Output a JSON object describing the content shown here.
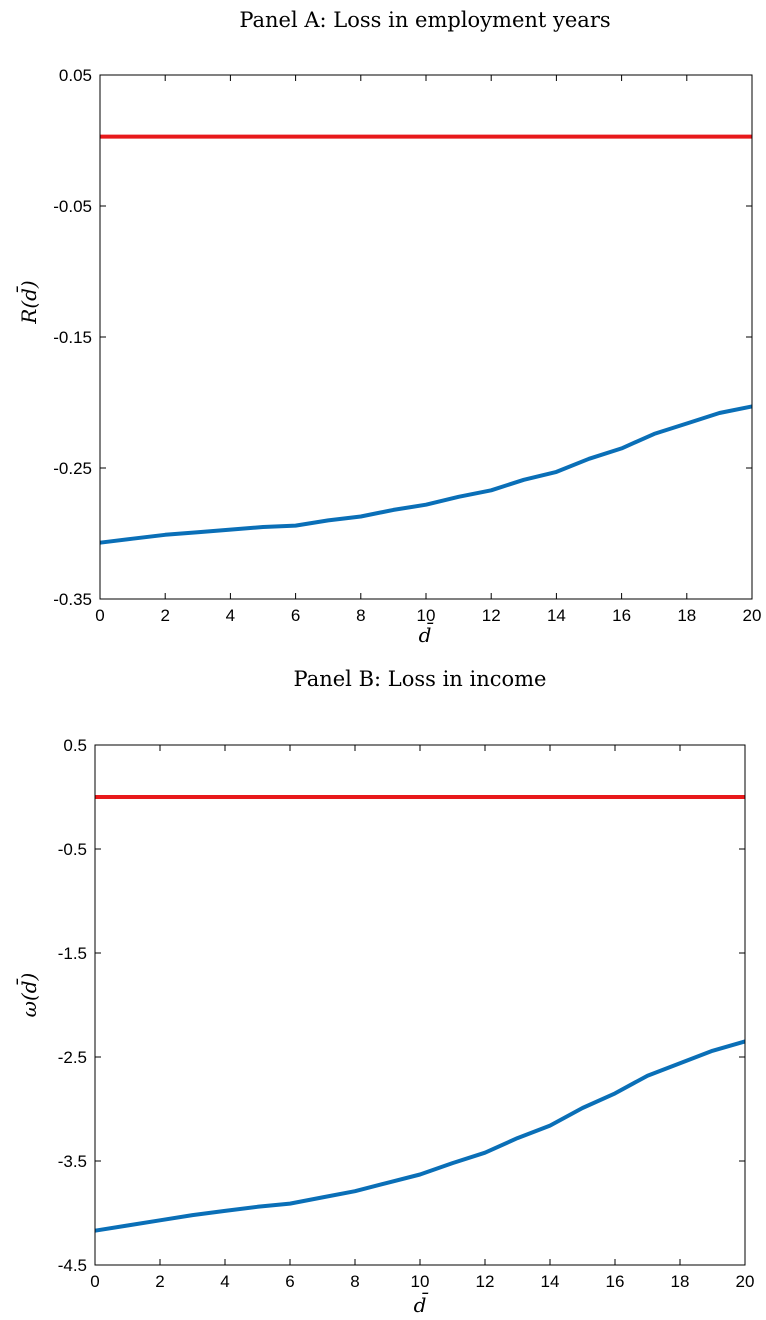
{
  "chart_data": [
    {
      "type": "line",
      "title": "Panel A: Loss in employment years",
      "xlabel": "d̄",
      "ylabel": "R(d̄)",
      "xlim": [
        0,
        20
      ],
      "ylim": [
        -0.35,
        0.05
      ],
      "xticks": [
        0,
        2,
        4,
        6,
        8,
        10,
        12,
        14,
        16,
        18,
        20
      ],
      "yticks": [
        0.05,
        -0.05,
        -0.15,
        -0.25,
        -0.35
      ],
      "ytick_labels": [
        "0.05",
        "-0.05",
        "-0.15",
        "-0.25",
        "-0.35"
      ],
      "grid": false,
      "series": [
        {
          "color": "#e8191b",
          "x": [
            0,
            20
          ],
          "y": [
            0.003,
            0.003
          ]
        },
        {
          "color": "#0a6fb7",
          "x": [
            0,
            1,
            2,
            3,
            4,
            5,
            6,
            7,
            8,
            9,
            10,
            11,
            12,
            13,
            14,
            15,
            16,
            17,
            18,
            19,
            20
          ],
          "y": [
            -0.307,
            -0.304,
            -0.301,
            -0.299,
            -0.297,
            -0.295,
            -0.294,
            -0.29,
            -0.287,
            -0.282,
            -0.278,
            -0.272,
            -0.267,
            -0.259,
            -0.253,
            -0.243,
            -0.235,
            -0.224,
            -0.216,
            -0.208,
            -0.203
          ]
        }
      ]
    },
    {
      "type": "line",
      "title": "Panel B: Loss in income",
      "xlabel": "d̄",
      "ylabel": "ω(d̄)",
      "xlim": [
        0,
        20
      ],
      "ylim": [
        -4.5,
        0.5
      ],
      "xticks": [
        0,
        2,
        4,
        6,
        8,
        10,
        12,
        14,
        16,
        18,
        20
      ],
      "yticks": [
        0.5,
        -0.5,
        -1.5,
        -2.5,
        -3.5,
        -4.5
      ],
      "ytick_labels": [
        "0.5",
        "-0.5",
        "-1.5",
        "-2.5",
        "-3.5",
        "-4.5"
      ],
      "grid": false,
      "series": [
        {
          "color": "#e8191b",
          "x": [
            0,
            20
          ],
          "y": [
            0.0,
            0.0
          ]
        },
        {
          "color": "#0a6fb7",
          "x": [
            0,
            1,
            2,
            3,
            4,
            5,
            6,
            7,
            8,
            9,
            10,
            11,
            12,
            13,
            14,
            15,
            16,
            17,
            18,
            19,
            20
          ],
          "y": [
            -4.17,
            -4.12,
            -4.07,
            -4.02,
            -3.98,
            -3.94,
            -3.91,
            -3.85,
            -3.79,
            -3.71,
            -3.63,
            -3.52,
            -3.42,
            -3.28,
            -3.16,
            -2.99,
            -2.85,
            -2.68,
            -2.56,
            -2.44,
            -2.35
          ]
        }
      ]
    }
  ]
}
